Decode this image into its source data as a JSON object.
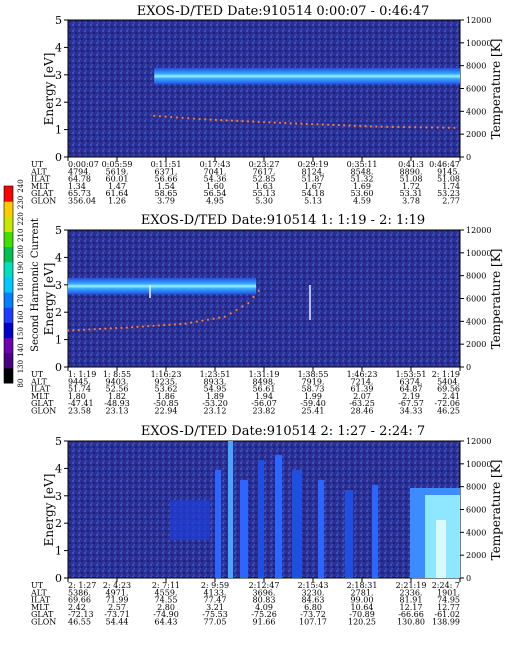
{
  "figure": {
    "colorbar": {
      "label": "Second Harmonic Current",
      "ticks": [
        "80",
        "130",
        "140",
        "150",
        "160",
        "170",
        "180",
        "190",
        "200",
        "210",
        "220",
        "230",
        "240"
      ],
      "colors": [
        "#000000",
        "#4b0082",
        "#6a00b0",
        "#0000cd",
        "#1e3cff",
        "#0080ff",
        "#00c8ff",
        "#00e0c0",
        "#00c050",
        "#40e000",
        "#c8e800",
        "#ffcc00",
        "#ff0000"
      ]
    }
  },
  "chart_data": [
    {
      "type": "heatmap",
      "title": "EXOS-D/TED   Date:910514   0:00:07 - 0:46:47",
      "ylabel": "Energy [eV]",
      "y2label": "Temperature [K]",
      "ylim": [
        0,
        5
      ],
      "y2lim": [
        0,
        12000
      ],
      "yticks": [
        "0",
        "1",
        "2",
        "3",
        "4",
        "5"
      ],
      "y2ticks": [
        "0",
        "2000",
        "4000",
        "6000",
        "8000",
        "10000",
        "12000"
      ],
      "band": {
        "start": 0.22,
        "end": 1.0,
        "center_ev": 2.95,
        "half_width_ev": 0.3
      },
      "temperature_trace": [
        [
          0.22,
          3600
        ],
        [
          0.35,
          3300
        ],
        [
          0.5,
          3050
        ],
        [
          0.65,
          2850
        ],
        [
          0.8,
          2650
        ],
        [
          1.0,
          2550
        ]
      ],
      "ephemeris": [
        {
          "label": "UT",
          "values": [
            "0:00:07",
            "0:05:59",
            "0:11:51",
            "0:17:43",
            "0:23:27",
            "0:29:19",
            "0:35:11",
            "0:41:3",
            "0:46:47"
          ]
        },
        {
          "label": "ALT",
          "values": [
            "4794.",
            "5619.",
            "6371.",
            "7041.",
            "7617.",
            "8124.",
            "8548.",
            "8890.",
            "9145."
          ]
        },
        {
          "label": "ILAT",
          "values": [
            "64.78",
            "60.01",
            "56.66",
            "54.36",
            "52.85",
            "51.87",
            "51.32",
            "51.08",
            "51.08"
          ]
        },
        {
          "label": "MLT",
          "values": [
            "1.34",
            "1.47",
            "1.54",
            "1.60",
            "1.63",
            "1.67",
            "1.69",
            "1.72",
            "1.74"
          ]
        },
        {
          "label": "GLAT",
          "values": [
            "65.73",
            "61.64",
            "58.65",
            "56.54",
            "55.13",
            "54.18",
            "53.60",
            "53.31",
            "53.23"
          ]
        },
        {
          "label": "GLON",
          "values": [
            "356.04",
            "1.26",
            "3.79",
            "4.95",
            "5.30",
            "5.13",
            "4.59",
            "3.78",
            "2.77"
          ]
        }
      ]
    },
    {
      "type": "heatmap",
      "title": "EXOS-D/TED   Date:910514   1: 1:19 - 2: 1:19",
      "ylabel": "Energy [eV]",
      "y2label": "Temperature [K]",
      "ylim": [
        0,
        5
      ],
      "y2lim": [
        0,
        12000
      ],
      "yticks": [
        "0",
        "1",
        "2",
        "3",
        "4",
        "5"
      ],
      "y2ticks": [
        "0",
        "2000",
        "4000",
        "6000",
        "8000",
        "10000",
        "12000"
      ],
      "band": {
        "start": 0.0,
        "end": 0.48,
        "center_ev": 2.95,
        "half_width_ev": 0.3
      },
      "temperature_trace": [
        [
          0.0,
          3200
        ],
        [
          0.15,
          3450
        ],
        [
          0.3,
          3800
        ],
        [
          0.4,
          4400
        ],
        [
          0.46,
          5600
        ],
        [
          0.5,
          7200
        ]
      ],
      "ephemeris": [
        {
          "label": "UT",
          "values": [
            "1: 1:19",
            "1: 8:55",
            "1:16:23",
            "1:23:51",
            "1:31:19",
            "1:38:55",
            "1:46:23",
            "1:53:51",
            "2: 1:19"
          ]
        },
        {
          "label": "ALT",
          "values": [
            "9445.",
            "9403.",
            "9235.",
            "8933.",
            "8498.",
            "7919.",
            "7214.",
            "6374.",
            "5404."
          ]
        },
        {
          "label": "ILAT",
          "values": [
            "51.74",
            "52.56",
            "53.62",
            "54.95",
            "56.61",
            "58.73",
            "61.39",
            "64.87",
            "69.56"
          ]
        },
        {
          "label": "MLT",
          "values": [
            "1.80",
            "1.82",
            "1.86",
            "1.89",
            "1.94",
            "1.99",
            "2.07",
            "2.19",
            "2.41"
          ]
        },
        {
          "label": "GLAT",
          "values": [
            "-47.41",
            "-48.93",
            "-50.85",
            "-53.20",
            "-56.07",
            "-59.40",
            "-63.25",
            "-67.57",
            "-72.06"
          ]
        },
        {
          "label": "GLON",
          "values": [
            "23.58",
            "23.13",
            "22.94",
            "23.12",
            "23.82",
            "25.41",
            "28.46",
            "34.33",
            "46.25"
          ]
        }
      ]
    },
    {
      "type": "heatmap",
      "title": "EXOS-D/TED   Date:910514   2: 1:27 - 2:24: 7",
      "ylabel": "Energy [eV]",
      "y2label": "Temperature [K]",
      "ylim": [
        0,
        5
      ],
      "y2lim": [
        0,
        12000
      ],
      "yticks": [
        "0",
        "1",
        "2",
        "3",
        "4",
        "5"
      ],
      "y2ticks": [
        "0",
        "2000",
        "4000",
        "6000",
        "8000",
        "10000",
        "12000"
      ],
      "band": {
        "start": 0.0,
        "end": 0.0,
        "center_ev": 0,
        "half_width_ev": 0
      },
      "temperature_trace": [],
      "ephemeris": [
        {
          "label": "UT",
          "values": [
            "2: 1:27",
            "2: 4:23",
            "2: 7:11",
            "2: 9:59",
            "2:12:47",
            "2:15:43",
            "2:18:31",
            "2:21:19",
            "2:24: 7"
          ]
        },
        {
          "label": "ALT",
          "values": [
            "5386.",
            "4971.",
            "4559.",
            "4133.",
            "3696.",
            "3230.",
            "2781.",
            "2336.",
            "1901."
          ]
        },
        {
          "label": "ILAT",
          "values": [
            "69.66",
            "71.99",
            "74.55",
            "77.47",
            "80.83",
            "84.63",
            "99.00",
            "81.91",
            "74.95"
          ]
        },
        {
          "label": "MLT",
          "values": [
            "2.42",
            "2.57",
            "2.80",
            "3.21",
            "4.09",
            "6.80",
            "10.64",
            "12.17",
            "12.77"
          ]
        },
        {
          "label": "GLAT",
          "values": [
            "-72.13",
            "-73.71",
            "-74.90",
            "-75.53",
            "-75.26",
            "-73.72",
            "-70.89",
            "-66.66",
            "-61.02"
          ]
        },
        {
          "label": "GLON",
          "values": [
            "46.55",
            "54.44",
            "64.43",
            "77.05",
            "91.66",
            "107.17",
            "120.25",
            "130.80",
            "138.99"
          ]
        }
      ]
    }
  ]
}
